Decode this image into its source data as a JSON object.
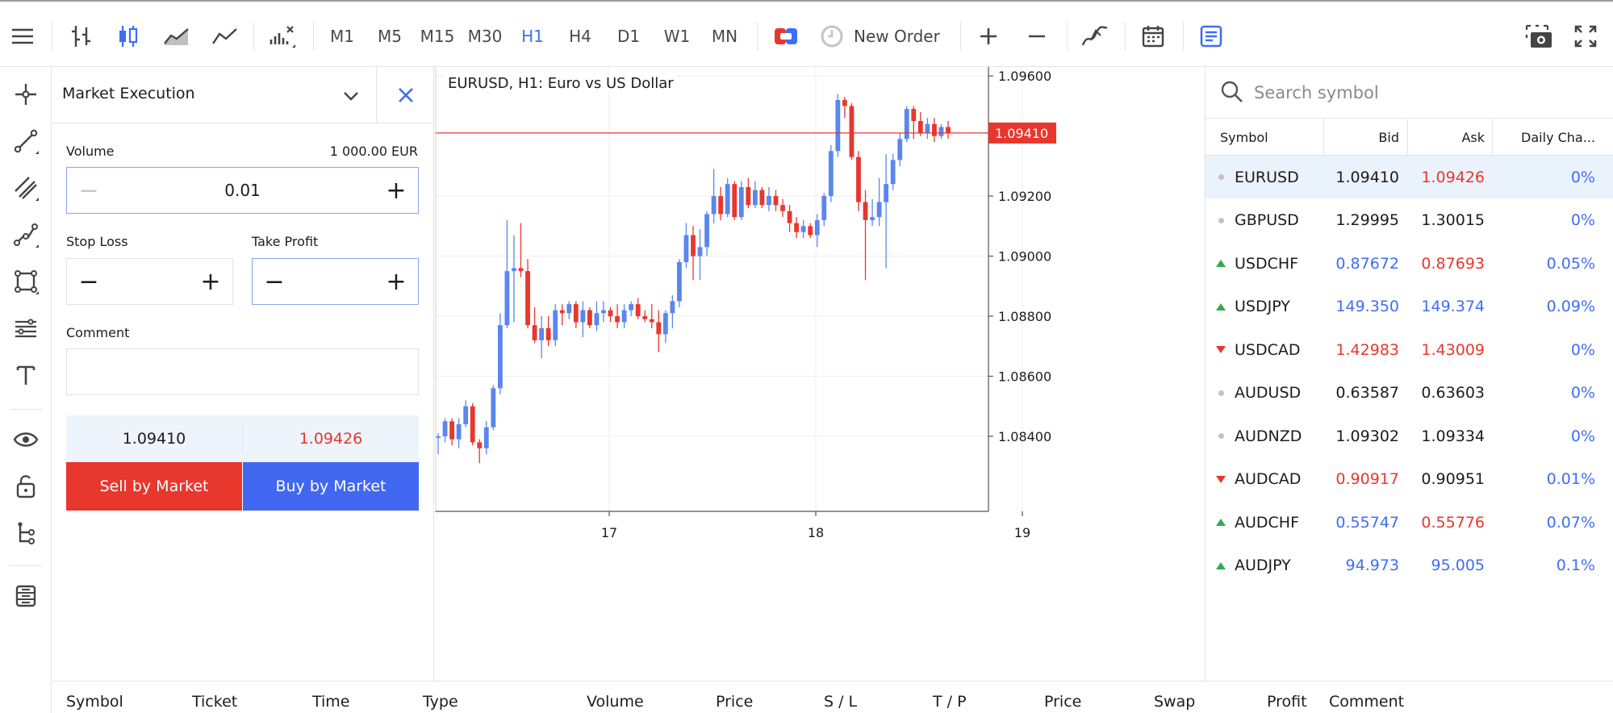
{
  "toolbar": {
    "timeframes": [
      "M1",
      "M5",
      "M15",
      "M30",
      "H1",
      "H4",
      "D1",
      "W1",
      "MN"
    ],
    "active_timeframe": "H1",
    "new_order_label": "New Order"
  },
  "order_panel": {
    "title": "Market Execution",
    "volume_label": "Volume",
    "volume_amount": "1 000.00 EUR",
    "volume_value": "0.01",
    "stop_loss_label": "Stop Loss",
    "take_profit_label": "Take Profit",
    "comment_label": "Comment",
    "bid": "1.09410",
    "ask": "1.09426",
    "sell_label": "Sell by Market",
    "buy_label": "Buy by Market"
  },
  "chart": {
    "title": "EURUSD, H1: Euro vs US Dollar",
    "current_price": "1.09410",
    "colors": {
      "bull": "#5a86ee",
      "bear": "#e8372d",
      "grid": "#eeeeee"
    }
  },
  "chart_data": {
    "type": "candlestick",
    "symbol": "EURUSD",
    "timeframe": "H1",
    "x_ticks": [
      "17",
      "18",
      "19"
    ],
    "y_ticks": [
      "1.09600",
      "1.09200",
      "1.09000",
      "1.08800",
      "1.08600",
      "1.08400"
    ],
    "ylim": [
      1.0815,
      1.0963
    ],
    "current_price": 1.0941,
    "candles": [
      [
        1.08395,
        1.0841,
        1.0834,
        1.084
      ],
      [
        1.084,
        1.0846,
        1.0838,
        1.0845
      ],
      [
        1.0845,
        1.0846,
        1.0837,
        1.0839
      ],
      [
        1.0839,
        1.0846,
        1.0836,
        1.0844
      ],
      [
        1.0844,
        1.0852,
        1.0843,
        1.085
      ],
      [
        1.085,
        1.0851,
        1.0837,
        1.0838
      ],
      [
        1.0838,
        1.0839,
        1.0831,
        1.0836
      ],
      [
        1.0836,
        1.0845,
        1.0834,
        1.0843
      ],
      [
        1.0843,
        1.0857,
        1.0842,
        1.0856
      ],
      [
        1.0856,
        1.0881,
        1.0854,
        1.0877
      ],
      [
        1.0877,
        1.0912,
        1.0876,
        1.0895
      ],
      [
        1.0895,
        1.0907,
        1.0878,
        1.0896
      ],
      [
        1.0896,
        1.0911,
        1.0893,
        1.0895
      ],
      [
        1.0895,
        1.0899,
        1.0876,
        1.0877
      ],
      [
        1.0877,
        1.0883,
        1.0871,
        1.0872
      ],
      [
        1.0872,
        1.088,
        1.0866,
        1.0876
      ],
      [
        1.0876,
        1.088,
        1.087,
        1.0872
      ],
      [
        1.0872,
        1.0884,
        1.087,
        1.0882
      ],
      [
        1.0882,
        1.0884,
        1.0877,
        1.0881
      ],
      [
        1.0881,
        1.0885,
        1.0879,
        1.0884
      ],
      [
        1.0884,
        1.0885,
        1.0876,
        1.0878
      ],
      [
        1.0878,
        1.0885,
        1.0873,
        1.0882
      ],
      [
        1.0882,
        1.0883,
        1.0876,
        1.0877
      ],
      [
        1.0877,
        1.0885,
        1.0875,
        1.0881
      ],
      [
        1.0881,
        1.0885,
        1.0878,
        1.0882
      ],
      [
        1.0882,
        1.0883,
        1.0878,
        1.088
      ],
      [
        1.088,
        1.0884,
        1.0876,
        1.0878
      ],
      [
        1.0878,
        1.0884,
        1.0876,
        1.0882
      ],
      [
        1.0882,
        1.0885,
        1.088,
        1.0884
      ],
      [
        1.0884,
        1.0886,
        1.0879,
        1.088
      ],
      [
        1.088,
        1.0882,
        1.0878,
        1.0879
      ],
      [
        1.0879,
        1.0884,
        1.0876,
        1.0878
      ],
      [
        1.0878,
        1.0882,
        1.0868,
        1.0874
      ],
      [
        1.0874,
        1.0882,
        1.0871,
        1.0881
      ],
      [
        1.0881,
        1.0887,
        1.0876,
        1.0885
      ],
      [
        1.0885,
        1.0899,
        1.0883,
        1.0898
      ],
      [
        1.0898,
        1.0911,
        1.0896,
        1.0907
      ],
      [
        1.0907,
        1.091,
        1.0892,
        1.09
      ],
      [
        1.09,
        1.0909,
        1.0892,
        1.0903
      ],
      [
        1.0903,
        1.0915,
        1.09,
        1.0914
      ],
      [
        1.0914,
        1.0929,
        1.0911,
        1.092
      ],
      [
        1.092,
        1.0923,
        1.0912,
        1.0914
      ],
      [
        1.0914,
        1.0926,
        1.0913,
        1.0924
      ],
      [
        1.0924,
        1.0925,
        1.0912,
        1.0913
      ],
      [
        1.0913,
        1.0925,
        1.0912,
        1.0923
      ],
      [
        1.0923,
        1.0926,
        1.0916,
        1.0917
      ],
      [
        1.0917,
        1.0925,
        1.0916,
        1.0922
      ],
      [
        1.0922,
        1.0923,
        1.0916,
        1.0917
      ],
      [
        1.0917,
        1.0923,
        1.0915,
        1.092
      ],
      [
        1.092,
        1.0922,
        1.0915,
        1.0917
      ],
      [
        1.0917,
        1.0919,
        1.0913,
        1.0915
      ],
      [
        1.0915,
        1.0917,
        1.0908,
        1.0911
      ],
      [
        1.0911,
        1.0913,
        1.0906,
        1.0908
      ],
      [
        1.0908,
        1.0912,
        1.0906,
        1.091
      ],
      [
        1.091,
        1.0911,
        1.0906,
        1.0907
      ],
      [
        1.0907,
        1.0914,
        1.0903,
        1.0912
      ],
      [
        1.0912,
        1.0921,
        1.091,
        1.092
      ],
      [
        1.092,
        1.0937,
        1.0918,
        1.0935
      ],
      [
        1.0935,
        1.0954,
        1.0933,
        1.0952
      ],
      [
        1.0952,
        1.0953,
        1.0946,
        1.095
      ],
      [
        1.095,
        1.0951,
        1.0932,
        1.0933
      ],
      [
        1.0933,
        1.0935,
        1.0915,
        1.0918
      ],
      [
        1.0918,
        1.0922,
        1.0892,
        1.0912
      ],
      [
        1.0912,
        1.0919,
        1.091,
        1.0913
      ],
      [
        1.0913,
        1.0926,
        1.091,
        1.0918
      ],
      [
        1.0918,
        1.0934,
        1.0896,
        1.0924
      ],
      [
        1.0924,
        1.0934,
        1.0922,
        1.0932
      ],
      [
        1.0932,
        1.0941,
        1.093,
        1.0939
      ],
      [
        1.0939,
        1.095,
        1.0938,
        1.0949
      ],
      [
        1.0949,
        1.095,
        1.0939,
        1.0945
      ],
      [
        1.0945,
        1.0948,
        1.094,
        1.0941
      ],
      [
        1.0941,
        1.0946,
        1.0939,
        1.0944
      ],
      [
        1.0944,
        1.0946,
        1.0938,
        1.094
      ],
      [
        1.094,
        1.0944,
        1.0939,
        1.0943
      ],
      [
        1.0943,
        1.0945,
        1.0939,
        1.0941
      ]
    ]
  },
  "market_watch": {
    "search_placeholder": "Search symbol",
    "columns": [
      "Symbol",
      "Bid",
      "Ask",
      "Daily Cha..."
    ],
    "rows": [
      {
        "symbol": "EURUSD",
        "bid": "1.09410",
        "ask": "1.09426",
        "change": "0%",
        "dir": "none",
        "bid_color": "neutral",
        "ask_color": "down",
        "selected": true
      },
      {
        "symbol": "GBPUSD",
        "bid": "1.29995",
        "ask": "1.30015",
        "change": "0%",
        "dir": "none",
        "bid_color": "neutral",
        "ask_color": "neutral"
      },
      {
        "symbol": "USDCHF",
        "bid": "0.87672",
        "ask": "0.87693",
        "change": "0.05%",
        "dir": "up",
        "bid_color": "up",
        "ask_color": "down"
      },
      {
        "symbol": "USDJPY",
        "bid": "149.350",
        "ask": "149.374",
        "change": "0.09%",
        "dir": "up",
        "bid_color": "up",
        "ask_color": "up"
      },
      {
        "symbol": "USDCAD",
        "bid": "1.42983",
        "ask": "1.43009",
        "change": "0%",
        "dir": "down",
        "bid_color": "down",
        "ask_color": "down"
      },
      {
        "symbol": "AUDUSD",
        "bid": "0.63587",
        "ask": "0.63603",
        "change": "0%",
        "dir": "none",
        "bid_color": "neutral",
        "ask_color": "neutral"
      },
      {
        "symbol": "AUDNZD",
        "bid": "1.09302",
        "ask": "1.09334",
        "change": "0%",
        "dir": "none",
        "bid_color": "neutral",
        "ask_color": "neutral"
      },
      {
        "symbol": "AUDCAD",
        "bid": "0.90917",
        "ask": "0.90951",
        "change": "0.01%",
        "dir": "down",
        "bid_color": "down",
        "ask_color": "neutral"
      },
      {
        "symbol": "AUDCHF",
        "bid": "0.55747",
        "ask": "0.55776",
        "change": "0.07%",
        "dir": "up",
        "bid_color": "up",
        "ask_color": "down"
      },
      {
        "symbol": "AUDJPY",
        "bid": "94.973",
        "ask": "95.005",
        "change": "0.1%",
        "dir": "up",
        "bid_color": "up",
        "ask_color": "up"
      }
    ]
  },
  "trade_table": {
    "columns": [
      "Symbol",
      "Ticket",
      "Time",
      "Type",
      "Volume",
      "Price",
      "S / L",
      "T / P",
      "Price",
      "Swap",
      "Profit",
      "Comment"
    ]
  }
}
